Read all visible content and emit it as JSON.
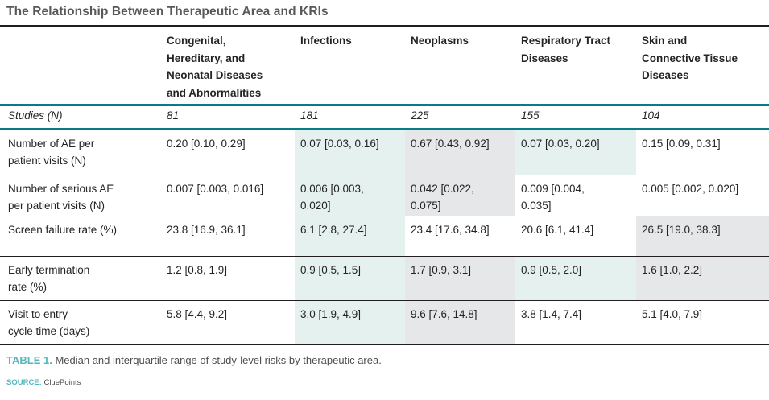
{
  "title": "The Relationship Between Therapeutic Area and KRIs",
  "table": {
    "columns": [
      {
        "label": "Congenital,\nHereditary, and\nNeonatal Diseases\nand Abnormalities"
      },
      {
        "label": "Infections"
      },
      {
        "label": "Neoplasms"
      },
      {
        "label": "Respiratory Tract\nDiseases"
      },
      {
        "label": "Skin and\nConnective Tissue\nDiseases"
      }
    ],
    "studies_row": {
      "label": "Studies (N)",
      "values": [
        "81",
        "181",
        "225",
        "155",
        "104"
      ]
    },
    "rows": [
      {
        "label": "Number of AE per\npatient visits (N)",
        "values": [
          "0.20 [0.10, 0.29]",
          "0.07 [0.03, 0.16]",
          "0.67 [0.43, 0.92]",
          "0.07 [0.03, 0.20]",
          "0.15 [0.09, 0.31]"
        ],
        "highlights": [
          "none",
          "teal",
          "gray",
          "teal",
          "none"
        ]
      },
      {
        "label": "Number of serious AE\nper patient visits (N)",
        "values": [
          "0.007 [0.003, 0.016]",
          "0.006 [0.003,\n0.020]",
          "0.042 [0.022,\n0.075]",
          "0.009 [0.004,\n0.035]",
          "0.005 [0.002, 0.020]"
        ],
        "highlights": [
          "none",
          "teal",
          "gray",
          "none",
          "none"
        ]
      },
      {
        "label": "Screen failure rate (%)",
        "values": [
          "23.8 [16.9, 36.1]",
          "6.1 [2.8, 27.4]",
          "23.4 [17.6, 34.8]",
          "20.6 [6.1, 41.4]",
          "26.5 [19.0, 38.3]"
        ],
        "highlights": [
          "none",
          "teal",
          "none",
          "none",
          "gray"
        ]
      },
      {
        "label": "Early termination\nrate (%)",
        "values": [
          "1.2 [0.8, 1.9]",
          "0.9 [0.5, 1.5]",
          "1.7 [0.9, 3.1]",
          "0.9 [0.5, 2.0]",
          "1.6 [1.0, 2.2]"
        ],
        "highlights": [
          "none",
          "teal",
          "gray",
          "teal",
          "gray"
        ]
      },
      {
        "label": "Visit to entry\ncycle time (days)",
        "values": [
          "5.8 [4.4, 9.2]",
          "3.0 [1.9, 4.9]",
          "9.6 [7.6, 14.8]",
          "3.8 [1.4, 7.4]",
          "5.1 [4.0, 7.9]"
        ],
        "highlights": [
          "none",
          "teal",
          "gray",
          "none",
          "none"
        ]
      }
    ]
  },
  "caption": {
    "tag": "TABLE 1.",
    "text": " Median and interquartile range of study-level risks by therapeutic area."
  },
  "source": {
    "tag": "SOURCE:",
    "text": " CluePoints"
  },
  "colors": {
    "teal_rule": "#077c86",
    "teal_highlight": "#e5f1ef",
    "gray_highlight": "#e6e7e8",
    "dark_rule": "#231f20",
    "title_text": "#58595b",
    "body_text": "#262324",
    "caption_accent": "#53b7bf"
  }
}
